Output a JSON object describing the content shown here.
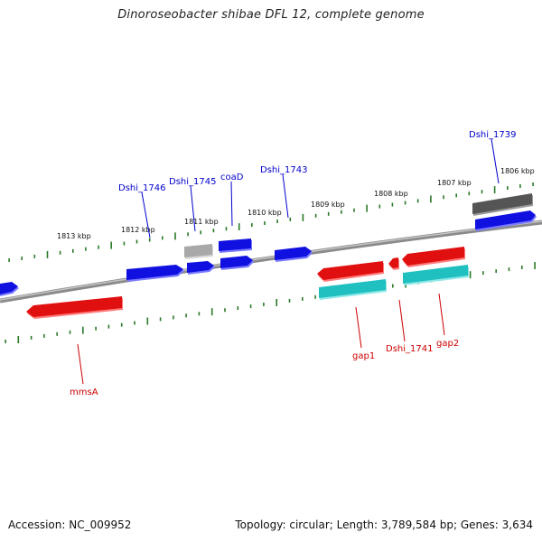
{
  "title": "Dinoroseobacter shibae DFL 12, complete genome",
  "footer": {
    "accession": "Accession: NC_009952",
    "summary": "Topology: circular; Length: 3,789,584 bp; Genes: 3,634"
  },
  "colors": {
    "forward_gene": "#1010e0",
    "reverse_gene": "#e01010",
    "rna_gene": "#20c0c0",
    "other_gene_light": "#a8a8a8",
    "other_gene_dark": "#555555",
    "ruler_tick": "#2a7a2a",
    "backbone": "#7a7a7a",
    "forward_label": "#0000cc",
    "reverse_label": "#cc0000"
  },
  "kbp_ticks": [
    "1806 kbp",
    "1807 kbp",
    "1808 kbp",
    "1809 kbp",
    "1810 kbp",
    "1811 kbp",
    "1812 kbp",
    "1813 kbp"
  ],
  "forward_labels": [
    "Dshi_1739",
    "Dshi_1743",
    "coaD",
    "Dshi_1745",
    "Dshi_1746"
  ],
  "reverse_labels": [
    "gap1",
    "Dshi_1741",
    "gap2",
    "mmsA"
  ]
}
